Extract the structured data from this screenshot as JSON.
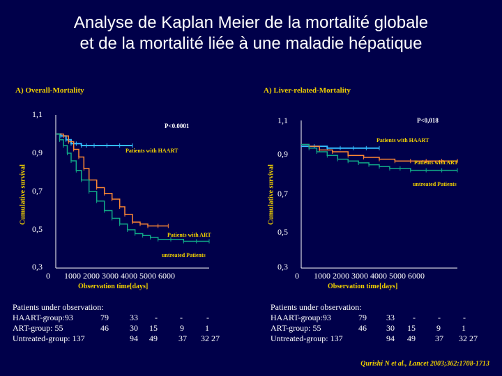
{
  "title_line1": "Analyse de Kaplan Meier de la mortalité globale",
  "title_line2": "et de la mortalité liée à une maladie hépatique",
  "citation": "Qurishi N et al., Lancet 2003;362:1708-1713",
  "colors": {
    "background": "#00004a",
    "haart": "#33bbff",
    "art": "#ff8833",
    "untreated": "#11aa88",
    "label": "#f0d000"
  },
  "chart_data": [
    {
      "type": "line",
      "panel_title": "A) Overall-Mortality",
      "ylabel": "Cumulative survival",
      "xlabel": "Observation time[days]",
      "xlim": [
        0,
        6000
      ],
      "ylim": [
        0.3,
        1.1
      ],
      "yticks": [
        "1,1",
        "0,9",
        "0,7",
        "0,5",
        "0,3"
      ],
      "xticks_text": [
        "0",
        "1000 2000 3000 4000 5000 6000"
      ],
      "pvalue": "P<0.0001",
      "series": [
        {
          "name": "Patients with HAART",
          "color": "#33bbff",
          "x": [
            0,
            200,
            400,
            600,
            800,
            1000,
            1200,
            1500,
            2000,
            2500,
            3000
          ],
          "y": [
            1.0,
            0.99,
            0.97,
            0.95,
            0.95,
            0.94,
            0.94,
            0.94,
            0.94,
            0.94,
            0.94
          ]
        },
        {
          "name": "Patients with ART",
          "color": "#ff8833",
          "x": [
            0,
            300,
            500,
            700,
            900,
            1100,
            1300,
            1600,
            1900,
            2200,
            2500,
            2700,
            3000,
            3300,
            3600,
            4000,
            4400
          ],
          "y": [
            1.0,
            0.99,
            0.96,
            0.92,
            0.88,
            0.82,
            0.76,
            0.72,
            0.69,
            0.66,
            0.62,
            0.58,
            0.54,
            0.53,
            0.52,
            0.52,
            0.52
          ]
        },
        {
          "name": "untreated Patients",
          "color": "#11aa88",
          "x": [
            0,
            150,
            300,
            450,
            600,
            800,
            1000,
            1300,
            1600,
            1900,
            2200,
            2500,
            2800,
            3100,
            3400,
            3700,
            4000,
            4500,
            5000,
            5500,
            6000
          ],
          "y": [
            1.0,
            0.97,
            0.94,
            0.9,
            0.86,
            0.81,
            0.76,
            0.7,
            0.65,
            0.6,
            0.56,
            0.53,
            0.5,
            0.48,
            0.47,
            0.46,
            0.45,
            0.45,
            0.44,
            0.44,
            0.44
          ]
        }
      ]
    },
    {
      "type": "line",
      "panel_title": "A) Liver-related-Mortality",
      "ylabel": "Cumulative survival",
      "xlabel": "Observation time[days]",
      "xlim": [
        0,
        6000
      ],
      "ylim": [
        0.3,
        1.1
      ],
      "yticks": [
        "1,1",
        "0,9",
        "0,7",
        "0,5",
        "0,3"
      ],
      "xticks_text": [
        "0",
        "1000 2000 3000 4000 5000 6000"
      ],
      "pvalue": "P<0,018",
      "series": [
        {
          "name": "Patients with HAART",
          "color": "#33bbff",
          "x": [
            0,
            500,
            1000,
            1500,
            2000,
            2500,
            3000
          ],
          "y": [
            0.96,
            0.96,
            0.95,
            0.95,
            0.95,
            0.95,
            0.95
          ]
        },
        {
          "name": "Patients with ART",
          "color": "#ff8833",
          "x": [
            0,
            300,
            700,
            1200,
            1800,
            2400,
            3000,
            3600,
            4200,
            4800,
            5400,
            6000
          ],
          "y": [
            0.97,
            0.96,
            0.94,
            0.93,
            0.91,
            0.9,
            0.89,
            0.88,
            0.88,
            0.88,
            0.88,
            0.88
          ]
        },
        {
          "name": "untreated Patients",
          "color": "#11aa88",
          "x": [
            0,
            300,
            600,
            1000,
            1400,
            1800,
            2200,
            2600,
            3000,
            3400,
            3800,
            4200,
            4800,
            5400,
            6000
          ],
          "y": [
            0.97,
            0.95,
            0.93,
            0.91,
            0.89,
            0.88,
            0.87,
            0.86,
            0.85,
            0.84,
            0.84,
            0.83,
            0.83,
            0.83,
            0.83
          ]
        }
      ]
    }
  ],
  "observation": [
    {
      "header": "Patients under observation:",
      "rows": [
        {
          "label": "HAART-group:93",
          "c1": "79",
          "c2": "33",
          "c3": "-",
          "c4": "-",
          "c5": "-"
        },
        {
          "label": "ART-group:   55",
          "c1": "46",
          "c2": "30",
          "c3": "15",
          "c4": "9",
          "c5": "1"
        },
        {
          "label": "Untreated-group:  137",
          "c1": "",
          "c2": "94",
          "c3": "49",
          "c4": "37",
          "c5": "32 27"
        }
      ]
    },
    {
      "header": "Patients under observation:",
      "rows": [
        {
          "label": "HAART-group:93",
          "c1": "79",
          "c2": "33",
          "c3": "-",
          "c4": "-",
          "c5": "-"
        },
        {
          "label": "ART-group:   55",
          "c1": "46",
          "c2": "30",
          "c3": "15",
          "c4": "9",
          "c5": "1"
        },
        {
          "label": "Untreated-group:  137",
          "c1": "",
          "c2": "94",
          "c3": "49",
          "c4": "37",
          "c5": "32 27"
        }
      ]
    }
  ]
}
